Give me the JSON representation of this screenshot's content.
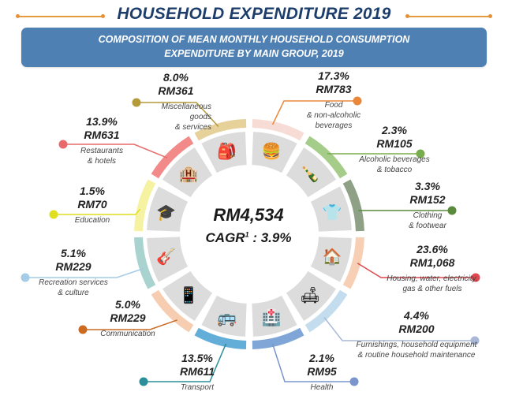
{
  "header": {
    "title": "HOUSEHOLD EXPENDITURE 2019",
    "subtitle_line1": "COMPOSITION OF MEAN MONTHLY HOUSEHOLD CONSUMPTION",
    "subtitle_line2": "EXPENDITURE BY MAIN GROUP, 2019",
    "accent_color": "#e5913a",
    "banner_color": "#4f80b4"
  },
  "center": {
    "total": "RM4,534",
    "cagr_label": "CAGR",
    "cagr_sup": "1",
    "cagr_value": " : 3.9%"
  },
  "chart_data": {
    "type": "pie",
    "title": "COMPOSITION OF MEAN MONTHLY HOUSEHOLD CONSUMPTION EXPENDITURE BY MAIN GROUP, 2019",
    "total": "RM4,534",
    "categories": [
      {
        "name_line1": "Food",
        "name_line2": "& non-alcoholic",
        "name_line3": "beverages",
        "percent": 17.3,
        "pct_label": "17.3%",
        "amount": 783,
        "rm_label": "RM783",
        "color": "#f7dcd6",
        "line_color": "#e9883b",
        "icon": "food-icon"
      },
      {
        "name_line1": "Alcoholic beverages",
        "name_line2": "& tobacco",
        "name_line3": "",
        "percent": 2.3,
        "pct_label": "2.3%",
        "amount": 105,
        "rm_label": "RM105",
        "color": "#a6cc8a",
        "line_color": "#78ad4e",
        "icon": "bottle-icon"
      },
      {
        "name_line1": "Clothing",
        "name_line2": "& footwear",
        "name_line3": "",
        "percent": 3.3,
        "pct_label": "3.3%",
        "amount": 152,
        "rm_label": "RM152",
        "color": "#8ea085",
        "line_color": "#5a8a3c",
        "icon": "clothing-icon"
      },
      {
        "name_line1": "Housing, water, electricity,",
        "name_line2": "gas & other fuels",
        "name_line3": "",
        "percent": 23.6,
        "pct_label": "23.6%",
        "amount": 1068,
        "rm_label": "RM1,068",
        "color": "#f6cfb5",
        "line_color": "#e0474f",
        "icon": "house-icon"
      },
      {
        "name_line1": "Furnishings, household equipment",
        "name_line2": "& routine household maintenance",
        "name_line3": "",
        "percent": 4.4,
        "pct_label": "4.4%",
        "amount": 200,
        "rm_label": "RM200",
        "color": "#c4ddee",
        "line_color": "#a8b8d6",
        "icon": "furnishings-icon"
      },
      {
        "name_line1": "Health",
        "name_line2": "",
        "name_line3": "",
        "percent": 2.1,
        "pct_label": "2.1%",
        "amount": 95,
        "rm_label": "RM95",
        "color": "#7fa6d6",
        "line_color": "#7a95cc",
        "icon": "hospital-icon"
      },
      {
        "name_line1": "Transport",
        "name_line2": "",
        "name_line3": "",
        "percent": 13.5,
        "pct_label": "13.5%",
        "amount": 611,
        "rm_label": "RM611",
        "color": "#63aed8",
        "line_color": "#2a8f99",
        "icon": "transport-icon"
      },
      {
        "name_line1": "Communication",
        "name_line2": "",
        "name_line3": "",
        "percent": 5.0,
        "pct_label": "5.0%",
        "amount": 229,
        "rm_label": "RM229",
        "color": "#f6cdb1",
        "line_color": "#cc6a22",
        "icon": "phone-icon"
      },
      {
        "name_line1": "Recreation services",
        "name_line2": "& culture",
        "name_line3": "",
        "percent": 5.1,
        "pct_label": "5.1%",
        "amount": 229,
        "rm_label": "RM229",
        "color": "#a9d3cf",
        "line_color": "#a6cbe6",
        "icon": "guitar-icon"
      },
      {
        "name_line1": "Education",
        "name_line2": "",
        "name_line3": "",
        "percent": 1.5,
        "pct_label": "1.5%",
        "amount": 70,
        "rm_label": "RM70",
        "color": "#f5f2a2",
        "line_color": "#dfdf1f",
        "icon": "graduation-icon"
      },
      {
        "name_line1": "Restaurants",
        "name_line2": "& hotels",
        "name_line3": "",
        "percent": 13.9,
        "pct_label": "13.9%",
        "amount": 631,
        "rm_label": "RM631",
        "color": "#f38a8a",
        "line_color": "#e86a6a",
        "icon": "hotel-icon"
      },
      {
        "name_line1": "Miscellaneous",
        "name_line2": "goods",
        "name_line3": "& services",
        "percent": 8.0,
        "pct_label": "8.0%",
        "amount": 361,
        "rm_label": "RM361",
        "color": "#e7d19a",
        "line_color": "#b59a3a",
        "icon": "shopping-icon"
      }
    ]
  }
}
